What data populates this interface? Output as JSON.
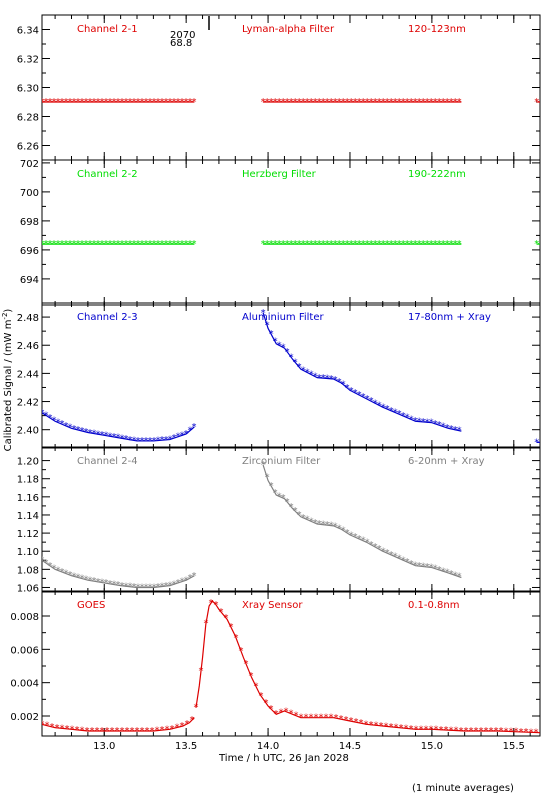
{
  "chart_data": {
    "type": "scatter",
    "xlabel": "Time / h UTC, 26 Jan 2028",
    "ylabel": "Calibrated Signal / (mW m",
    "ylabel_sup": "-2",
    "ylabel_close": ")",
    "footnote": "(1 minute averages)",
    "xlim": [
      12.62,
      15.66
    ],
    "xticks": [
      13.0,
      13.5,
      14.0,
      14.5,
      15.0,
      15.5
    ],
    "xtick_labels": [
      "13.0",
      "13.5",
      "14.0",
      "14.5",
      "15.0",
      "15.5"
    ],
    "top_annotation": [
      "2070",
      "68.8"
    ],
    "panels": [
      {
        "channel": "Channel 2-1",
        "filter": "Lyman-alpha Filter",
        "band": "120-123nm",
        "color": "#dd0000",
        "ylim": [
          6.25,
          6.35
        ],
        "yticks": [
          6.26,
          6.28,
          6.3,
          6.32,
          6.34
        ],
        "ytick_labels": [
          "6.26",
          "6.28",
          "6.30",
          "6.32",
          "6.34"
        ],
        "segments": [
          {
            "x": [
              12.62,
              13.55
            ],
            "y": [
              6.29,
              6.29
            ]
          },
          {
            "x": [
              13.97,
              15.18
            ],
            "y": [
              6.29,
              6.29
            ]
          },
          {
            "x": [
              15.64,
              15.66
            ],
            "y": [
              6.29,
              6.29
            ]
          }
        ]
      },
      {
        "channel": "Channel 2-2",
        "filter": "Herzberg Filter",
        "band": "190-222nm",
        "color": "#00dd00",
        "ylim": [
          692.2,
          702.2
        ],
        "yticks": [
          694,
          696,
          698,
          700,
          702
        ],
        "ytick_labels": [
          "694",
          "696",
          "698",
          "700",
          "702"
        ],
        "segments": [
          {
            "x": [
              12.62,
              13.55
            ],
            "y": [
              696.4,
              696.4
            ]
          },
          {
            "x": [
              13.97,
              15.18
            ],
            "y": [
              696.4,
              696.4
            ]
          },
          {
            "x": [
              15.64,
              15.66
            ],
            "y": [
              696.4,
              696.4
            ]
          }
        ]
      },
      {
        "channel": "Channel 2-3",
        "filter": "Aluminium Filter",
        "band": "17-80nm + Xray",
        "color": "#0000cc",
        "ylim": [
          2.387,
          2.49
        ],
        "yticks": [
          2.4,
          2.42,
          2.44,
          2.46,
          2.48
        ],
        "ytick_labels": [
          "2.40",
          "2.42",
          "2.44",
          "2.46",
          "2.48"
        ],
        "segments": [
          {
            "x": [
              12.62,
              12.7,
              12.8,
              12.9,
              13.0,
              13.1,
              13.2,
              13.3,
              13.4,
              13.5,
              13.55
            ],
            "y": [
              2.412,
              2.406,
              2.401,
              2.398,
              2.396,
              2.394,
              2.392,
              2.392,
              2.393,
              2.397,
              2.402
            ]
          },
          {
            "x": [
              13.97,
              14.0,
              14.05,
              14.1,
              14.15,
              14.2,
              14.3,
              14.4,
              14.45,
              14.5,
              14.6,
              14.7,
              14.8,
              14.9,
              15.0,
              15.1,
              15.18
            ],
            "y": [
              2.483,
              2.472,
              2.461,
              2.458,
              2.45,
              2.443,
              2.437,
              2.436,
              2.433,
              2.428,
              2.422,
              2.416,
              2.411,
              2.406,
              2.405,
              2.401,
              2.399
            ]
          },
          {
            "x": [
              15.64,
              15.66
            ],
            "y": [
              2.391,
              2.391
            ]
          }
        ]
      },
      {
        "channel": "Channel 2-4",
        "filter": "Zirconium Filter",
        "band": "6-20nm + Xray",
        "color": "#808080",
        "ylim": [
          1.055,
          1.215
        ],
        "yticks": [
          1.06,
          1.08,
          1.1,
          1.12,
          1.14,
          1.16,
          1.18,
          1.2
        ],
        "ytick_labels": [
          "1.06",
          "1.08",
          "1.10",
          "1.12",
          "1.14",
          "1.16",
          "1.18",
          "1.20"
        ],
        "segments": [
          {
            "x": [
              12.62,
              12.7,
              12.8,
              12.9,
              13.0,
              13.1,
              13.2,
              13.3,
              13.4,
              13.5,
              13.55
            ],
            "y": [
              1.09,
              1.08,
              1.073,
              1.068,
              1.065,
              1.062,
              1.06,
              1.06,
              1.062,
              1.068,
              1.073
            ]
          },
          {
            "x": [
              13.97,
              14.0,
              14.05,
              14.1,
              14.15,
              14.2,
              14.3,
              14.4,
              14.45,
              14.5,
              14.6,
              14.7,
              14.8,
              14.9,
              15.0,
              15.1,
              15.18
            ],
            "y": [
              1.195,
              1.178,
              1.162,
              1.158,
              1.147,
              1.138,
              1.13,
              1.128,
              1.124,
              1.118,
              1.11,
              1.1,
              1.092,
              1.084,
              1.082,
              1.076,
              1.071
            ]
          }
        ]
      },
      {
        "channel": "GOES",
        "filter": "Xray Sensor",
        "band": "0.1-0.8nm",
        "color": "#dd0000",
        "ylim": [
          0.0008,
          0.0095
        ],
        "yticks": [
          0.002,
          0.004,
          0.006,
          0.008
        ],
        "ytick_labels": [
          "0.002",
          "0.004",
          "0.006",
          "0.008"
        ],
        "segments": [
          {
            "x": [
              12.62,
              12.7,
              12.8,
              12.9,
              13.0,
              13.1,
              13.2,
              13.3,
              13.4,
              13.48,
              13.52,
              13.55
            ],
            "y": [
              0.0015,
              0.0013,
              0.0012,
              0.0011,
              0.0011,
              0.0011,
              0.0011,
              0.0011,
              0.0012,
              0.0014,
              0.0016,
              0.0019
            ]
          },
          {
            "x": [
              13.56,
              13.58,
              13.6,
              13.62,
              13.64,
              13.66,
              13.68,
              13.7,
              13.75,
              13.8,
              13.85,
              13.9,
              13.95,
              14.0,
              14.05,
              14.1,
              14.15,
              14.2,
              14.3,
              14.4,
              14.5,
              14.6,
              14.7,
              14.8,
              14.9,
              15.0,
              15.2,
              15.4,
              15.66
            ],
            "y": [
              0.0025,
              0.0038,
              0.0055,
              0.0075,
              0.0086,
              0.0089,
              0.0087,
              0.0084,
              0.0078,
              0.0068,
              0.0055,
              0.0043,
              0.0033,
              0.0026,
              0.0021,
              0.0023,
              0.0021,
              0.0019,
              0.0019,
              0.0019,
              0.0017,
              0.0015,
              0.0014,
              0.0013,
              0.0012,
              0.0012,
              0.0011,
              0.0011,
              0.001
            ]
          }
        ]
      }
    ]
  }
}
